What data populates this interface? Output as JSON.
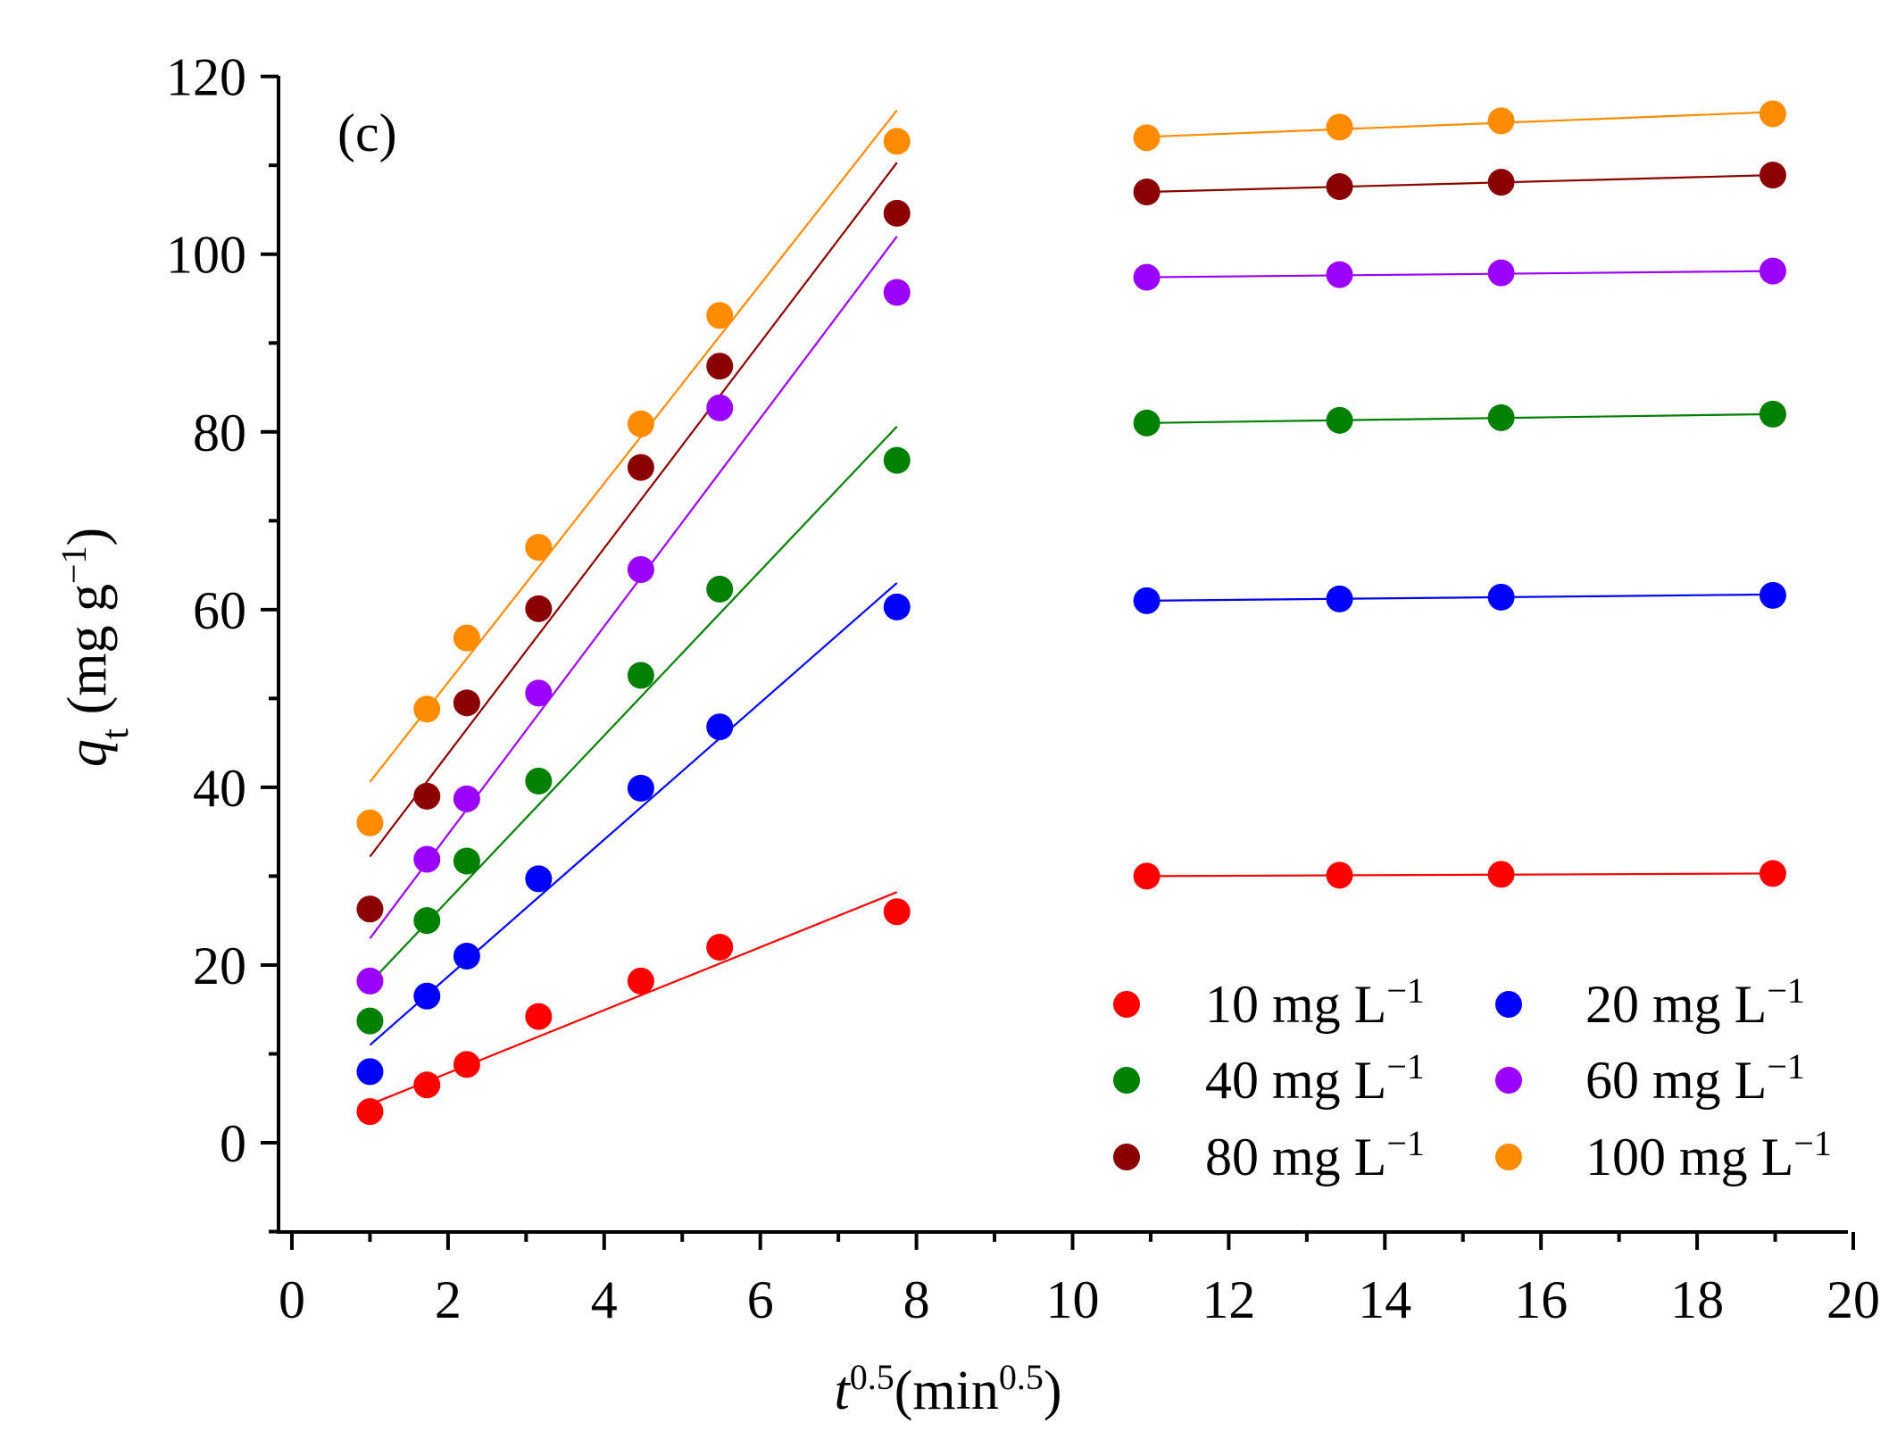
{
  "chart_data": {
    "type": "scatter",
    "panel_label": "(c)",
    "xlabel": {
      "base": "t",
      "sup": "0.5",
      "unit_open": "(min",
      "unit_sup": "0.5",
      "unit_close": ")"
    },
    "ylabel": {
      "base": "q",
      "sub": "t",
      "unit_open": " (mg g",
      "unit_sup": "−1",
      "unit_close": ")"
    },
    "xlim": [
      -0.2,
      20
    ],
    "ylim": [
      -10,
      120
    ],
    "x_ticks": [
      0,
      2,
      4,
      6,
      8,
      10,
      12,
      14,
      16,
      18,
      20
    ],
    "x_tick_labels": [
      "0",
      "2",
      "4",
      "6",
      "8",
      "10",
      "12",
      "14",
      "16",
      "18",
      "20"
    ],
    "y_ticks": [
      0,
      20,
      40,
      60,
      80,
      100,
      120
    ],
    "y_tick_labels": [
      "0",
      "20",
      "40",
      "60",
      "80",
      "100",
      "120"
    ],
    "legend_position": "bottom-right",
    "series": [
      {
        "name": "10 mg L",
        "name_sup": "−1",
        "color": "#ff0000",
        "x": [
          1.0,
          1.73,
          2.24,
          3.16,
          4.47,
          5.48,
          7.75,
          10.95,
          13.42,
          15.49,
          18.97
        ],
        "y": [
          3.5,
          6.5,
          8.8,
          14.2,
          18.2,
          22.0,
          26.0,
          30.0,
          30.1,
          30.2,
          30.3
        ],
        "fit_lines": [
          {
            "x": [
              1.0,
              7.75
            ],
            "y": [
              4.3,
              28.2
            ]
          },
          {
            "x": [
              10.95,
              18.97
            ],
            "y": [
              30.0,
              30.3
            ]
          }
        ]
      },
      {
        "name": "20 mg L",
        "name_sup": "−1",
        "color": "#0000ff",
        "x": [
          1.0,
          1.73,
          2.24,
          3.16,
          4.47,
          5.48,
          7.75,
          10.95,
          13.42,
          15.49,
          18.97
        ],
        "y": [
          8.0,
          16.5,
          21.0,
          29.7,
          39.9,
          46.8,
          60.3,
          61.0,
          61.2,
          61.4,
          61.6
        ],
        "fit_lines": [
          {
            "x": [
              1.0,
              7.75
            ],
            "y": [
              11.0,
              63.0
            ]
          },
          {
            "x": [
              10.95,
              18.97
            ],
            "y": [
              61.0,
              61.7
            ]
          }
        ]
      },
      {
        "name": "40 mg L",
        "name_sup": "−1",
        "color": "#008000",
        "x": [
          1.0,
          1.73,
          2.24,
          3.16,
          4.47,
          5.48,
          7.75,
          10.95,
          13.42,
          15.49,
          18.97
        ],
        "y": [
          13.7,
          25.0,
          31.7,
          40.7,
          52.6,
          62.3,
          76.8,
          81.0,
          81.3,
          81.6,
          82.0
        ],
        "fit_lines": [
          {
            "x": [
              1.0,
              7.75
            ],
            "y": [
              18.0,
              80.6
            ]
          },
          {
            "x": [
              10.95,
              18.97
            ],
            "y": [
              81.0,
              82.0
            ]
          }
        ]
      },
      {
        "name": "60 mg L",
        "name_sup": "−1",
        "color": "#9b00ff",
        "x": [
          1.0,
          1.73,
          2.24,
          3.16,
          4.47,
          5.48,
          7.75,
          10.95,
          13.42,
          15.49,
          18.97
        ],
        "y": [
          18.2,
          31.9,
          38.7,
          50.6,
          64.5,
          82.7,
          95.7,
          97.4,
          97.7,
          97.9,
          98.1
        ],
        "fit_lines": [
          {
            "x": [
              1.0,
              7.75
            ],
            "y": [
              23.0,
              102.0
            ]
          },
          {
            "x": [
              10.95,
              18.97
            ],
            "y": [
              97.4,
              98.1
            ]
          }
        ]
      },
      {
        "name": "80 mg L",
        "name_sup": "−1",
        "color": "#8b0000",
        "x": [
          1.0,
          1.73,
          2.24,
          3.16,
          4.47,
          5.48,
          7.75,
          10.95,
          13.42,
          15.49,
          18.97
        ],
        "y": [
          26.3,
          39.0,
          49.5,
          60.1,
          76.0,
          87.4,
          104.6,
          107.0,
          107.6,
          108.1,
          108.9
        ],
        "fit_lines": [
          {
            "x": [
              1.0,
              7.75
            ],
            "y": [
              32.2,
              110.3
            ]
          },
          {
            "x": [
              10.95,
              18.97
            ],
            "y": [
              107.0,
              108.9
            ]
          }
        ]
      },
      {
        "name": "100 mg L",
        "name_sup": "−1",
        "color": "#ff8c00",
        "x": [
          1.0,
          1.73,
          2.24,
          3.16,
          4.47,
          5.48,
          7.75,
          10.95,
          13.42,
          15.49,
          18.97
        ],
        "y": [
          36.0,
          48.8,
          56.8,
          67.0,
          80.9,
          93.1,
          112.7,
          113.1,
          114.3,
          115.0,
          115.8
        ],
        "fit_lines": [
          {
            "x": [
              1.0,
              7.75
            ],
            "y": [
              40.6,
              116.2
            ]
          },
          {
            "x": [
              10.95,
              18.97
            ],
            "y": [
              113.2,
              116.0
            ]
          }
        ]
      }
    ]
  }
}
